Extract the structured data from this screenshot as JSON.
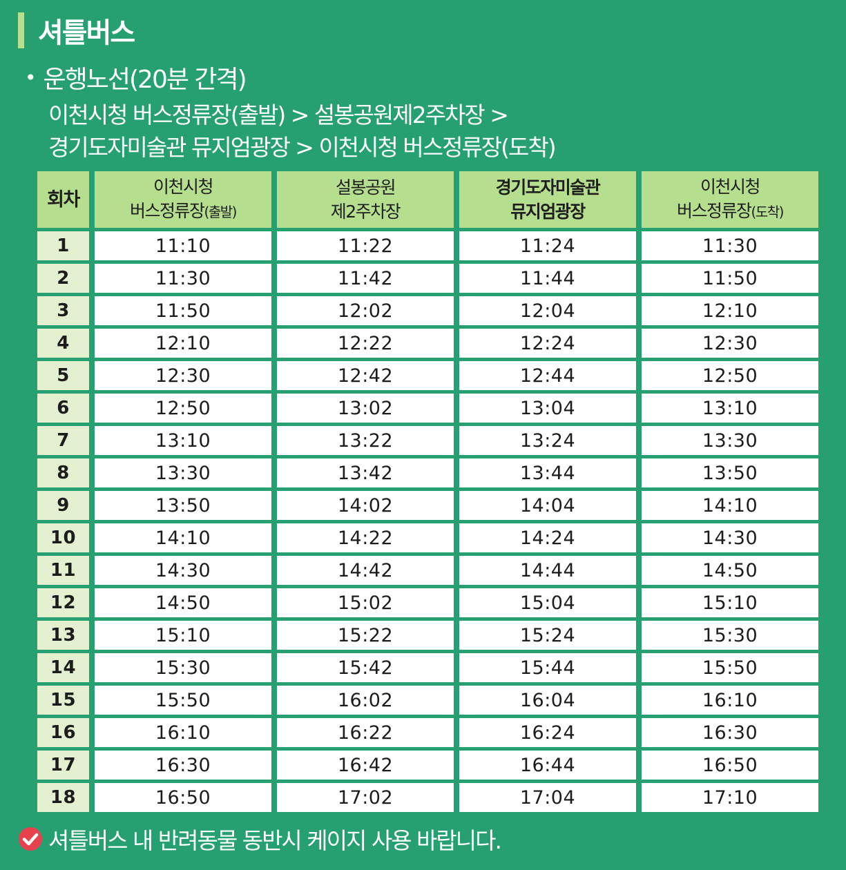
{
  "title": "셔틀버스",
  "route": {
    "bullet": "•",
    "heading": "운행노선(20분 간격)",
    "line1": "이천시청 버스정류장(출발) > 설봉공원제2주차장 >",
    "line2": "경기도자미술관 뮤지엄광장 > 이천시청 버스정류장(도착)"
  },
  "table": {
    "headers": {
      "index": "회차",
      "stop1_line1": "이천시청",
      "stop1_line2": "버스정류장",
      "stop1_note": "(출발)",
      "stop2_line1": "설봉공원",
      "stop2_line2": "제2주차장",
      "stop3_line1": "경기도자미술관",
      "stop3_line2": "뮤지엄광장",
      "stop4_line1": "이천시청",
      "stop4_line2": "버스정류장",
      "stop4_note": "(도착)"
    },
    "rows": [
      [
        "1",
        "11:10",
        "11:22",
        "11:24",
        "11:30"
      ],
      [
        "2",
        "11:30",
        "11:42",
        "11:44",
        "11:50"
      ],
      [
        "3",
        "11:50",
        "12:02",
        "12:04",
        "12:10"
      ],
      [
        "4",
        "12:10",
        "12:22",
        "12:24",
        "12:30"
      ],
      [
        "5",
        "12:30",
        "12:42",
        "12:44",
        "12:50"
      ],
      [
        "6",
        "12:50",
        "13:02",
        "13:04",
        "13:10"
      ],
      [
        "7",
        "13:10",
        "13:22",
        "13:24",
        "13:30"
      ],
      [
        "8",
        "13:30",
        "13:42",
        "13:44",
        "13:50"
      ],
      [
        "9",
        "13:50",
        "14:02",
        "14:04",
        "14:10"
      ],
      [
        "10",
        "14:10",
        "14:22",
        "14:24",
        "14:30"
      ],
      [
        "11",
        "14:30",
        "14:42",
        "14:44",
        "14:50"
      ],
      [
        "12",
        "14:50",
        "15:02",
        "15:04",
        "15:10"
      ],
      [
        "13",
        "15:10",
        "15:22",
        "15:24",
        "15:30"
      ],
      [
        "14",
        "15:30",
        "15:42",
        "15:44",
        "15:50"
      ],
      [
        "15",
        "15:50",
        "16:02",
        "16:04",
        "16:10"
      ],
      [
        "16",
        "16:10",
        "16:22",
        "16:24",
        "16:30"
      ],
      [
        "17",
        "16:30",
        "16:42",
        "16:44",
        "16:50"
      ],
      [
        "18",
        "16:50",
        "17:02",
        "17:04",
        "17:10"
      ]
    ]
  },
  "note": {
    "icon": "check-circle-icon",
    "text": "셔틀버스 내 반려동물 동반시 케이지 사용 바랍니다."
  },
  "colors": {
    "background": "#26a070",
    "header_fill": "#b5de8e",
    "index_fill": "#e4f1d1",
    "check_icon": "#e8414e"
  }
}
